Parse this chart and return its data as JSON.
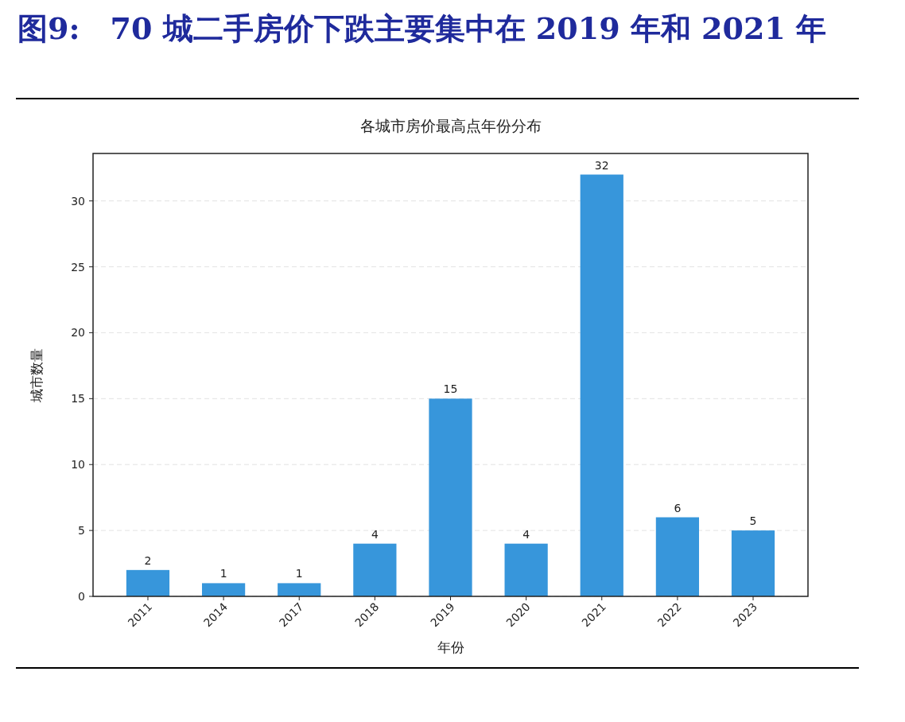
{
  "chart_data": {
    "type": "bar",
    "title": "图9:　70 城二手房价下跌主要集中在 2019 年和 2021 年",
    "subtitle": "各城市房价最高点年份分布",
    "xlabel": "年份",
    "ylabel": "城市数量",
    "categories": [
      "2011",
      "2014",
      "2017",
      "2018",
      "2019",
      "2020",
      "2021",
      "2022",
      "2023"
    ],
    "values": [
      2,
      1,
      1,
      4,
      15,
      4,
      32,
      6,
      5
    ],
    "color": "#3796db",
    "ylim": [
      0,
      33.6
    ],
    "yticks": [
      0,
      5,
      10,
      15,
      20,
      25,
      30
    ],
    "grid": "y",
    "data_labels": true
  }
}
